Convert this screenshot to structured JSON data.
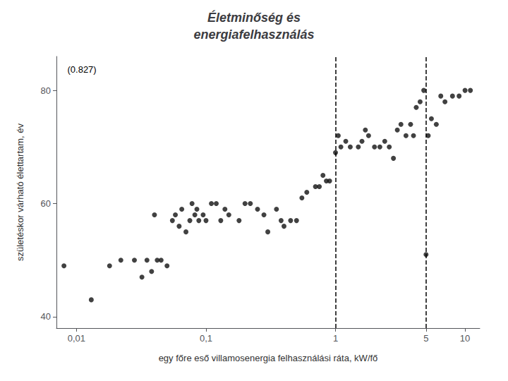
{
  "chart_data": {
    "type": "scatter",
    "title": "Életminőség és\nenergiafelhasználás",
    "xlabel": "egy főre eső villamosenergia felhasználási ráta, kW/fő",
    "ylabel": "születéskor várható élettartam, év",
    "annotations": [
      {
        "text": "(0.827)",
        "x": 0.0085,
        "y": 84.5
      }
    ],
    "vlines": [
      1,
      5
    ],
    "log": "x",
    "grid": false,
    "color": "#111111",
    "xlim": [
      0.007,
      13
    ],
    "ylim": [
      38,
      86
    ],
    "xticks": [
      {
        "value": 0.01,
        "label": "0,01"
      },
      {
        "value": 0.1,
        "label": "0,1"
      },
      1,
      5,
      10
    ],
    "yticks": [
      40,
      60,
      80
    ],
    "x": [
      0.008,
      0.013,
      0.018,
      0.022,
      0.028,
      0.032,
      0.035,
      0.038,
      0.04,
      0.042,
      0.045,
      0.05,
      0.055,
      0.058,
      0.062,
      0.065,
      0.07,
      0.075,
      0.078,
      0.082,
      0.085,
      0.088,
      0.095,
      0.1,
      0.11,
      0.12,
      0.13,
      0.14,
      0.15,
      0.18,
      0.2,
      0.22,
      0.25,
      0.28,
      0.3,
      0.35,
      0.38,
      0.4,
      0.45,
      0.5,
      0.55,
      0.6,
      0.7,
      0.75,
      0.8,
      0.85,
      0.9,
      1.0,
      1.05,
      1.1,
      1.2,
      1.3,
      1.5,
      1.6,
      1.7,
      1.8,
      2.0,
      2.2,
      2.4,
      2.6,
      2.8,
      3.0,
      3.2,
      3.5,
      3.8,
      4.0,
      4.2,
      4.5,
      4.8,
      5.0,
      5.2,
      5.5,
      6.0,
      6.5,
      7.0,
      8.0,
      9.0,
      10.0,
      11.0
    ],
    "values": [
      49,
      43,
      49,
      50,
      50,
      47,
      50,
      48,
      58,
      50,
      50,
      49,
      57,
      58,
      56,
      59,
      55,
      57,
      60,
      58,
      59,
      57,
      58,
      57,
      60,
      60,
      57,
      59,
      58,
      57,
      60,
      60,
      59,
      58,
      55,
      59,
      57,
      56,
      57,
      57,
      61,
      62,
      63,
      63,
      65,
      64,
      64,
      69,
      72,
      70,
      71,
      70,
      70,
      71,
      73,
      72,
      70,
      70,
      71,
      70,
      68,
      73,
      74,
      72,
      74,
      72,
      77,
      78,
      80,
      51,
      72,
      75,
      74,
      79,
      78,
      79,
      79,
      80,
      80
    ]
  }
}
